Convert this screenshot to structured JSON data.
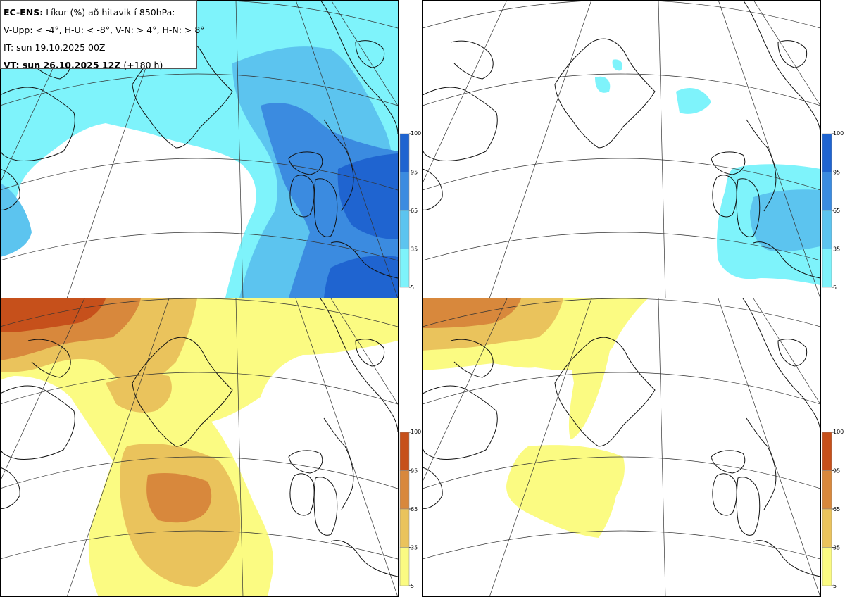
{
  "header": {
    "model": "EC-ENS:",
    "title": "Líkur (%) að hitavik í 850hPa:",
    "thresholds": "V-Upp: < -4°, H-U: < -8°, V-N: > 4°, H-N: > 8°",
    "issue_time": "IT: sun 19.10.2025 00Z",
    "valid_prefix": "VT: sun 26.10.2025 12Z",
    "valid_suffix": "(+180 h)"
  },
  "panels": [
    {
      "id": "upper-left",
      "field": "cold_lt_-4",
      "palette": "blue"
    },
    {
      "id": "upper-right",
      "field": "cold_lt_-8",
      "palette": "blue"
    },
    {
      "id": "lower-left",
      "field": "warm_gt_4",
      "palette": "orange"
    },
    {
      "id": "lower-right",
      "field": "warm_gt_8",
      "palette": "orange"
    }
  ],
  "legend": {
    "ticks": [
      "100",
      "95",
      "65",
      "35",
      "5"
    ],
    "cold_colors": [
      "#1f64d0",
      "#3b8be0",
      "#5cc4ef",
      "#7ef3fb"
    ],
    "warm_colors": [
      "#c6501b",
      "#d8883c",
      "#eac35c",
      "#fbfb82"
    ]
  }
}
